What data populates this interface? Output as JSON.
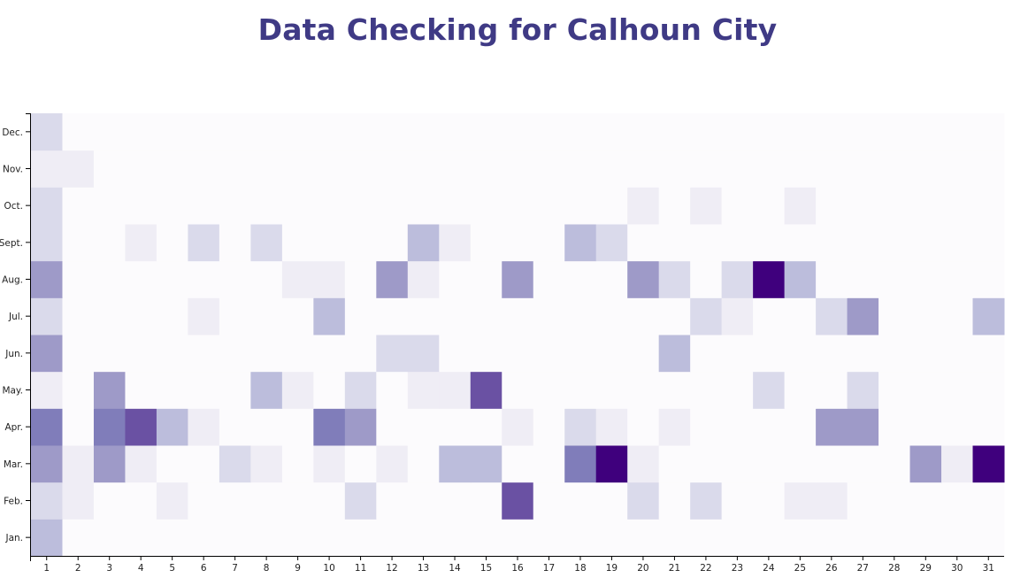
{
  "chart_data": {
    "type": "heatmap",
    "title": "Data Checking for Calhoun City",
    "x_labels": [
      "1",
      "2",
      "3",
      "4",
      "5",
      "6",
      "7",
      "8",
      "9",
      "10",
      "11",
      "12",
      "13",
      "14",
      "15",
      "16",
      "17",
      "18",
      "19",
      "20",
      "21",
      "22",
      "23",
      "24",
      "25",
      "26",
      "27",
      "28",
      "29",
      "30",
      "31"
    ],
    "y_labels": [
      "Jan.",
      "Feb.",
      "Mar.",
      "Apr.",
      "May.",
      "Jun.",
      "Jul.",
      "Aug.",
      "Sept.",
      "Oct.",
      "Nov.",
      "Dec."
    ],
    "value_range": [
      0,
      9
    ],
    "color_scale": [
      "#fcfbfd",
      "#efedf5",
      "#dadaeb",
      "#bcbddc",
      "#9e9ac8",
      "#807dba",
      "#6a51a3",
      "#54278f",
      "#3f007d"
    ],
    "cells": [
      {
        "month": "Jan.",
        "values": [
          3,
          0,
          0,
          0,
          0,
          0,
          0,
          0,
          0,
          0,
          0,
          0,
          0,
          0,
          0,
          0,
          0,
          0,
          0,
          0,
          0,
          0,
          0,
          0,
          0,
          0,
          0,
          0,
          0,
          0,
          0
        ]
      },
      {
        "month": "Feb.",
        "values": [
          2,
          1,
          0,
          0,
          1,
          0,
          0,
          0,
          0,
          0,
          2,
          0,
          0,
          0,
          0,
          7,
          0,
          0,
          0,
          2,
          0,
          2,
          0,
          0,
          1,
          1,
          0,
          0,
          0,
          0,
          0
        ]
      },
      {
        "month": "Mar.",
        "values": [
          5,
          1,
          4,
          1,
          0,
          0,
          2,
          1,
          0,
          1,
          0,
          1,
          0,
          3,
          3,
          0,
          0,
          6,
          9,
          1,
          0,
          0,
          0,
          0,
          0,
          0,
          0,
          0,
          4,
          1,
          9
        ]
      },
      {
        "month": "Apr.",
        "values": [
          6,
          0,
          6,
          7,
          3,
          1,
          0,
          0,
          0,
          6,
          4,
          0,
          0,
          0,
          0,
          1,
          0,
          2,
          1,
          0,
          1,
          0,
          0,
          0,
          0,
          4,
          4,
          0,
          0,
          0,
          0
        ]
      },
      {
        "month": "May.",
        "values": [
          1,
          0,
          4,
          0,
          0,
          0,
          0,
          3,
          1,
          0,
          2,
          0,
          1,
          1,
          7,
          0,
          0,
          0,
          0,
          0,
          0,
          0,
          0,
          2,
          0,
          0,
          2,
          0,
          0,
          0,
          0
        ]
      },
      {
        "month": "Jun.",
        "values": [
          4,
          0,
          0,
          0,
          0,
          0,
          0,
          0,
          0,
          0,
          0,
          2,
          2,
          0,
          0,
          0,
          0,
          0,
          0,
          0,
          3,
          0,
          0,
          0,
          0,
          0,
          0,
          0,
          0,
          0,
          0
        ]
      },
      {
        "month": "Jul.",
        "values": [
          2,
          0,
          0,
          0,
          0,
          1,
          0,
          0,
          0,
          3,
          0,
          0,
          0,
          0,
          0,
          0,
          0,
          0,
          0,
          0,
          0,
          2,
          1,
          0,
          0,
          2,
          4,
          0,
          0,
          0,
          3
        ]
      },
      {
        "month": "Aug.",
        "values": [
          4,
          0,
          0,
          0,
          0,
          0,
          0,
          0,
          1,
          1,
          0,
          5,
          1,
          0,
          0,
          4,
          0,
          0,
          0,
          5,
          2,
          0,
          2,
          9,
          3,
          0,
          0,
          0,
          0,
          0,
          0
        ]
      },
      {
        "month": "Sept.",
        "values": [
          2,
          0,
          0,
          1,
          0,
          2,
          0,
          2,
          0,
          0,
          0,
          0,
          3,
          1,
          0,
          0,
          0,
          3,
          2,
          0,
          0,
          0,
          0,
          0,
          0,
          0,
          0,
          0,
          0,
          0,
          0
        ]
      },
      {
        "month": "Oct.",
        "values": [
          2,
          0,
          0,
          0,
          0,
          0,
          0,
          0,
          0,
          0,
          0,
          0,
          0,
          0,
          0,
          0,
          0,
          0,
          0,
          1,
          0,
          1,
          0,
          0,
          1,
          0,
          0,
          0,
          0,
          0,
          0
        ]
      },
      {
        "month": "Nov.",
        "values": [
          1,
          1,
          0,
          0,
          0,
          0,
          0,
          0,
          0,
          0,
          0,
          0,
          0,
          0,
          0,
          0,
          0,
          0,
          0,
          0,
          0,
          0,
          0,
          0,
          0,
          0,
          0,
          0,
          0,
          0,
          0
        ]
      },
      {
        "month": "Dec.",
        "values": [
          2,
          0,
          0,
          0,
          0,
          0,
          0,
          0,
          0,
          0,
          0,
          0,
          0,
          0,
          0,
          0,
          0,
          0,
          0,
          0,
          0,
          0,
          0,
          0,
          0,
          0,
          0,
          0,
          0,
          0,
          0
        ]
      }
    ]
  }
}
